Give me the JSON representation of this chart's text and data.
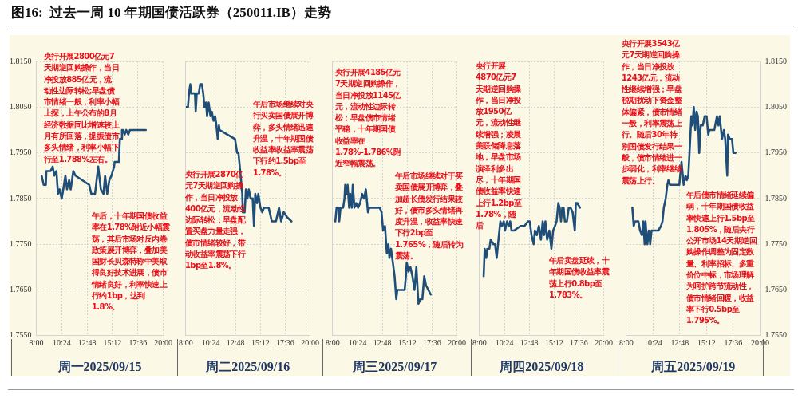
{
  "chart_data": [
    {
      "type": "line",
      "title": "图16:  过去一周 10 年期国债活跃券（250011.IB）走势",
      "xlabel": "周一2025/09/15",
      "grid": true,
      "legend": false,
      "marker": "none",
      "line_style": "solid",
      "xlim": [
        8,
        20
      ],
      "xticks": [
        {
          "value": 8,
          "label": "8:00"
        },
        {
          "value": 10.4,
          "label": "10:24"
        },
        {
          "value": 12.8,
          "label": "12:48"
        },
        {
          "value": 15.2,
          "label": "15:12"
        },
        {
          "value": 17.6,
          "label": "17:36"
        },
        {
          "value": 20,
          "label": "20:00"
        }
      ],
      "ylim": [
        1.755,
        1.815
      ],
      "yticks": [
        {
          "value": 1.755,
          "label": "1.7550"
        },
        {
          "value": 1.765,
          "label": "1.7650"
        },
        {
          "value": 1.775,
          "label": "1.7750"
        },
        {
          "value": 1.785,
          "label": "1.7850"
        },
        {
          "value": 1.795,
          "label": "1.7950"
        },
        {
          "value": 1.805,
          "label": "1.8050"
        },
        {
          "value": 1.815,
          "label": "1.8150"
        }
      ],
      "x": [
        8.5,
        8.7,
        8.9,
        8.95,
        9.2,
        9.35,
        9.55,
        9.7,
        9.9,
        10.05,
        10.2,
        10.4,
        10.55,
        10.75,
        10.9,
        11.1,
        11.25,
        11.5,
        11.7,
        13.0,
        13.2,
        13.55,
        13.65,
        13.85,
        14.1,
        14.35,
        14.5,
        14.7,
        14.9,
        15.1,
        15.35,
        15.4,
        15.8,
        15.9,
        16.05,
        16.1,
        16.2,
        16.35,
        16.5,
        16.7,
        16.85,
        17.1,
        18.35
      ],
      "series": [
        {
          "color": "#1f4e79",
          "values": [
            1.79,
            1.788,
            1.788,
            1.791,
            1.791,
            1.791,
            1.792,
            1.79,
            1.791,
            1.786,
            1.787,
            1.785,
            1.787,
            1.79,
            1.787,
            1.789,
            1.787,
            1.791,
            1.79,
            1.788,
            1.786,
            1.786,
            1.788,
            1.792,
            1.787,
            1.786,
            1.79,
            1.786,
            1.789,
            1.79,
            1.792,
            1.793,
            1.793,
            1.798,
            1.798,
            1.8,
            1.8,
            1.799,
            1.8,
            1.799,
            1.8,
            1.8,
            1.8
          ]
        }
      ],
      "annotations": [
        "央行开展2800亿元7天期逆回购操作，当日净投放885亿元，流动性边际转松;早盘债市情绪一般，利率小幅上探，上午公布的8月经济数据同比增速较上月有所回落，提振债市多头情绪，利率小幅下行至1.788%左右。",
        "午后，十年期国债收益率在1.78%附近小幅震荡，其后市场对反内卷政策展开博弈，叠加美国财长贝森特称中美取得良好技术进展，债市情绪良好，利率快速上行约1bp，达到1.8%。"
      ]
    },
    {
      "type": "line",
      "xlabel": "周二2025/09/16",
      "grid": true,
      "legend": false,
      "marker": "none",
      "line_style": "solid",
      "tick_labels": "x",
      "xlim": [
        8,
        20
      ],
      "xticks": [
        {
          "value": 8,
          "label": "8:00"
        },
        {
          "value": 10.4,
          "label": "10:24"
        },
        {
          "value": 12.8,
          "label": "12:48"
        },
        {
          "value": 15.2,
          "label": "15:12"
        },
        {
          "value": 17.6,
          "label": "17:36"
        },
        {
          "value": 20,
          "label": "20:00"
        }
      ],
      "ylim": [
        1.755,
        1.815
      ],
      "yticks": [
        1.755,
        1.765,
        1.775,
        1.785,
        1.795,
        1.805,
        1.815
      ],
      "x": [
        8.05,
        8.2,
        8.3,
        8.43,
        8.5,
        8.88,
        8.95,
        9.05,
        9.25,
        9.38,
        9.55,
        9.68,
        9.8,
        9.95,
        10.05,
        10.2,
        10.38,
        10.5,
        10.68,
        10.83,
        10.95,
        11.08,
        11.2,
        11.25,
        12.75,
        12.95,
        13.08,
        13.25,
        13.45,
        13.5,
        13.68,
        13.8,
        13.95,
        14.08,
        14.25,
        14.45,
        14.58,
        14.7,
        14.88,
        15.0,
        15.2,
        15.38,
        15.55,
        16.0,
        16.3,
        16.7,
        17.0,
        17.2,
        17.45,
        17.75,
        18.2
      ],
      "series": [
        {
          "color": "#1f4e79",
          "values": [
            1.805,
            1.805,
            1.808,
            1.81,
            1.808,
            1.808,
            1.804,
            1.808,
            1.808,
            1.81,
            1.81,
            1.808,
            1.805,
            1.806,
            1.803,
            1.806,
            1.803,
            1.804,
            1.802,
            1.803,
            1.801,
            1.798,
            1.801,
            1.8,
            1.798,
            1.795,
            1.795,
            1.791,
            1.786,
            1.782,
            1.782,
            1.787,
            1.785,
            1.787,
            1.785,
            1.785,
            1.779,
            1.786,
            1.784,
            1.786,
            1.783,
            1.782,
            1.783,
            1.783,
            1.78,
            1.78,
            1.783,
            1.78,
            1.782,
            1.781,
            1.78
          ]
        }
      ],
      "annotations": [
        "午后市场继续对央行买卖国债展开博弈，多头情绪迅速升温，十年期国债收益率收益率震荡下行约1.5bp至1.78%。",
        "央行开展2870亿元7天期逆回购操作，当日净投放400亿元，流动性边际转松；早盘配置买盘力量走强，债市情绪较好，带动收益率震荡下行1bp至1.8%。"
      ]
    },
    {
      "type": "line",
      "xlabel": "周三2025/09/17",
      "grid": true,
      "legend": false,
      "marker": "none",
      "line_style": "solid",
      "tick_labels": "x",
      "xlim": [
        8,
        20
      ],
      "xticks": [
        {
          "value": 8,
          "label": "8:00"
        },
        {
          "value": 10.4,
          "label": "10:24"
        },
        {
          "value": 12.8,
          "label": "12:48"
        },
        {
          "value": 15.2,
          "label": "15:12"
        },
        {
          "value": 17.6,
          "label": "17:36"
        },
        {
          "value": 20,
          "label": "20:00"
        }
      ],
      "ylim": [
        1.755,
        1.815
      ],
      "yticks": [
        1.755,
        1.765,
        1.775,
        1.785,
        1.795,
        1.805,
        1.815
      ],
      "x": [
        8.25,
        8.38,
        8.58,
        8.63,
        8.76,
        9.01,
        9.14,
        9.21,
        9.34,
        9.44,
        9.59,
        9.69,
        9.84,
        9.94,
        10.1,
        10.27,
        10.45,
        10.65,
        10.85,
        11.03,
        11.2,
        11.41,
        11.53,
        12.54,
        12.72,
        12.87,
        13.05,
        13.23,
        13.38,
        13.48,
        13.63,
        13.81,
        13.98,
        14.14,
        14.24,
        14.95,
        15.07,
        15.15,
        15.33,
        15.5,
        15.7,
        15.9,
        16.08,
        16.28,
        16.46,
        16.66,
        16.84,
        17.01,
        17.47
      ],
      "series": [
        {
          "color": "#1f4e79",
          "values": [
            1.78,
            1.783,
            1.783,
            1.78,
            1.783,
            1.783,
            1.785,
            1.788,
            1.786,
            1.788,
            1.783,
            1.786,
            1.783,
            1.788,
            1.783,
            1.784,
            1.783,
            1.784,
            1.786,
            1.785,
            1.787,
            1.782,
            1.783,
            1.783,
            1.782,
            1.778,
            1.779,
            1.773,
            1.775,
            1.772,
            1.774,
            1.771,
            1.768,
            1.763,
            1.765,
            1.765,
            1.768,
            1.771,
            1.769,
            1.77,
            1.768,
            1.765,
            1.77,
            1.762,
            1.763,
            1.763,
            1.768,
            1.766,
            1.764
          ]
        }
      ],
      "annotations": [
        "央行开展4185亿元7天期逆回购操作，当日净投放1145亿元，流动性边际转松；早盘债市情绪平稳，十年期国债收益率在1.78%-1.786%附近窄幅震荡。",
        "午后市场继续对于买卖国债展开博弈，叠加超长债发行结果较好，债市多头情绪再度升温，收益率快速下行2bp至1.765%，随后转为震荡。"
      ]
    },
    {
      "type": "line",
      "xlabel": "周四2025/09/18",
      "grid": true,
      "legend": false,
      "marker": "none",
      "line_style": "solid",
      "tick_labels": "x",
      "xlim": [
        8,
        20
      ],
      "xticks": [
        {
          "value": 8,
          "label": "8:00"
        },
        {
          "value": 10.4,
          "label": "10:24"
        },
        {
          "value": 12.8,
          "label": "12:48"
        },
        {
          "value": 15.2,
          "label": "15:12"
        },
        {
          "value": 17.6,
          "label": "17:36"
        },
        {
          "value": 20,
          "label": "20:00"
        }
      ],
      "ylim": [
        1.755,
        1.815
      ],
      "yticks": [
        1.755,
        1.765,
        1.775,
        1.785,
        1.795,
        1.805,
        1.815
      ],
      "x": [
        8.4,
        8.5,
        8.65,
        8.75,
        8.95,
        9.08,
        9.33,
        9.5,
        9.66,
        9.83,
        10.01,
        10.16,
        10.34,
        10.46,
        10.66,
        10.84,
        10.96,
        11.09,
        11.34,
        11.97,
        12.35,
        12.67,
        12.85,
        13.02,
        13.23,
        13.35,
        13.53,
        13.73,
        13.93,
        14.1,
        14.23,
        14.36,
        14.53,
        14.74,
        14.94,
        15.11,
        15.29,
        15.44,
        15.61,
        15.74,
        15.87,
        15.99,
        16.12,
        16.24,
        16.44,
        16.62,
        16.79,
        16.99,
        17.2,
        17.3,
        17.45,
        17.7
      ],
      "series": [
        {
          "color": "#1f4e79",
          "values": [
            1.768,
            1.774,
            1.772,
            1.774,
            1.774,
            1.776,
            1.775,
            1.775,
            1.772,
            1.776,
            1.78,
            1.779,
            1.78,
            1.778,
            1.78,
            1.779,
            1.78,
            1.778,
            1.778,
            1.779,
            1.779,
            1.78,
            1.78,
            1.777,
            1.775,
            1.778,
            1.777,
            1.779,
            1.776,
            1.78,
            1.777,
            1.78,
            1.776,
            1.778,
            1.774,
            1.778,
            1.779,
            1.78,
            1.784,
            1.783,
            1.78,
            1.783,
            1.783,
            1.78,
            1.78,
            1.783,
            1.783,
            1.782,
            1.778,
            1.784,
            1.784,
            1.783
          ]
        }
      ],
      "annotations": [
        "央行开展4870亿元7天期逆回购操作，当日净投放1950亿元，流动性继续增强；凌晨美联储降息落地，早盘市场演绎利多出尽，十年期国债收益率快速上行1.2bp至1.78%，随后",
        "午后卖盘延续，十年期国债收益率震荡上行0.8bp至1.783%。"
      ]
    },
    {
      "type": "line",
      "xlabel": "周五2025/09/19",
      "grid": true,
      "legend": false,
      "marker": "none",
      "line_style": "solid",
      "xlim": [
        8,
        20
      ],
      "xticks": [
        {
          "value": 8,
          "label": "8:00"
        },
        {
          "value": 10.4,
          "label": "10:24"
        },
        {
          "value": 12.8,
          "label": "12:48"
        },
        {
          "value": 15.2,
          "label": "15:12"
        },
        {
          "value": 17.6,
          "label": "17:36"
        },
        {
          "value": 20,
          "label": "20:00"
        }
      ],
      "y2lim": [
        1.755,
        1.815
      ],
      "y2ticks": [
        {
          "value": 1.755,
          "label": "1.7550"
        },
        {
          "value": 1.765,
          "label": "1.7650"
        },
        {
          "value": 1.775,
          "label": "1.7750"
        },
        {
          "value": 1.785,
          "label": "1.7850"
        },
        {
          "value": 1.795,
          "label": "1.7950"
        },
        {
          "value": 1.805,
          "label": "1.8050"
        },
        {
          "value": 1.815,
          "label": "1.8150"
        }
      ],
      "x": [
        8.54,
        8.66,
        8.78,
        9.08,
        9.23,
        9.4,
        9.52,
        9.64,
        9.72,
        9.81,
        9.89,
        10.01,
        10.14,
        10.26,
        10.87,
        11.11,
        11.24,
        11.36,
        11.53,
        11.68,
        11.77,
        11.92,
        12.75,
        12.95,
        13.14,
        13.31,
        13.43,
        13.56,
        13.73,
        13.83,
        13.93,
        14.05,
        14.18,
        14.3,
        14.42,
        14.54,
        14.67,
        14.86,
        15.03,
        15.2,
        15.35,
        15.45,
        15.89,
        16.13,
        16.26,
        16.38,
        16.58,
        16.75,
        16.87,
        17.05,
        17.12,
        17.29,
        17.48,
        17.6,
        17.8
      ],
      "series": [
        {
          "color": "#1f4e79",
          "axis": "y2",
          "values": [
            1.783,
            1.779,
            1.78,
            1.78,
            1.778,
            1.777,
            1.78,
            1.775,
            1.78,
            1.777,
            1.775,
            1.778,
            1.775,
            1.778,
            1.778,
            1.779,
            1.78,
            1.783,
            1.785,
            1.788,
            1.789,
            1.788,
            1.788,
            1.793,
            1.788,
            1.79,
            1.789,
            1.79,
            1.798,
            1.803,
            1.801,
            1.805,
            1.8,
            1.804,
            1.803,
            1.795,
            1.801,
            1.801,
            1.803,
            1.803,
            1.799,
            1.8,
            1.8,
            1.803,
            1.801,
            1.803,
            1.798,
            1.8,
            1.798,
            1.79,
            1.799,
            1.798,
            1.798,
            1.795,
            1.795
          ]
        }
      ],
      "annotations": [
        "央行开展3543亿元7天期逆回购操作，当日净投放1243亿元，流动性继续增强；早盘税期扰动下资金整体偏紧，债市情绪一般，利率震荡上行。随后30年特别国债发行结果一般，债市情绪进一步弱化，利率继续震荡上行。",
        "午后债市情绪延续偏弱，十年期国债收益率快速上行1.5bp至1.805%，随后央行公开市场14天期逆回购操作调整为固定数量、利率招标、多重价位中标，市场理解为呵护跨节流动性，债市情绪回暖，收益率下行0.5bp至1.795%。"
      ]
    }
  ]
}
